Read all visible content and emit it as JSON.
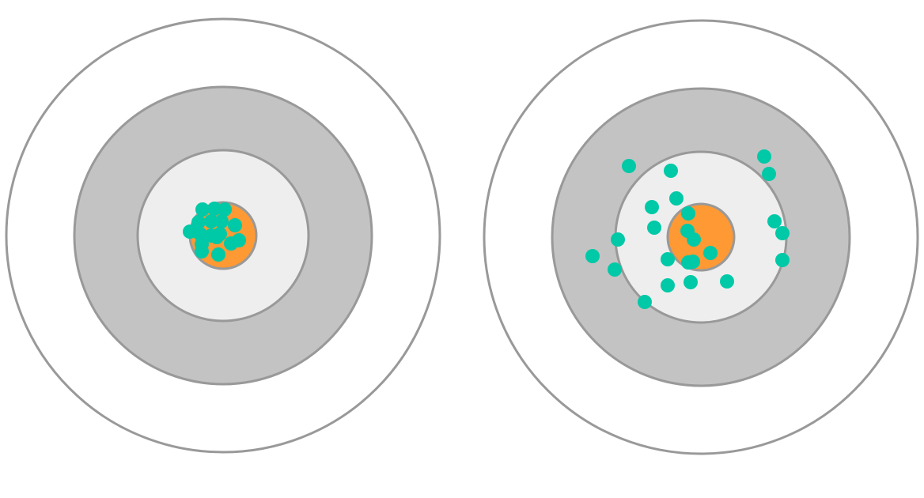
{
  "colors": {
    "background": "#ffffff",
    "ring_stroke": "#999999",
    "outer_ring_fill": "#ffffff",
    "middle_ring_fill": "#c3c3c3",
    "inner_ring_fill": "#eeeeee",
    "bullseye_fill": "#ff9933",
    "hit_fill": "#00c9a7"
  },
  "targets": [
    {
      "id": "left",
      "description_hidden": "",
      "hits": [
        [
          -26,
          -33
        ],
        [
          -11,
          -34
        ],
        [
          2,
          -33
        ],
        [
          -31,
          -17
        ],
        [
          -15,
          -18
        ],
        [
          -2,
          -18
        ],
        [
          15,
          -13
        ],
        [
          -42,
          -5
        ],
        [
          -29,
          -2
        ],
        [
          -15,
          0
        ],
        [
          -8,
          2
        ],
        [
          -4,
          -2
        ],
        [
          -27,
          11
        ],
        [
          10,
          10
        ],
        [
          20,
          6
        ],
        [
          -27,
          20
        ],
        [
          -6,
          24
        ]
      ]
    },
    {
      "id": "right",
      "description_hidden": "",
      "hits": [
        [
          -91,
          -90
        ],
        [
          -38,
          -84
        ],
        [
          80,
          -102
        ],
        [
          86,
          -80
        ],
        [
          -31,
          -49
        ],
        [
          -62,
          -38
        ],
        [
          -17,
          -8
        ],
        [
          -59,
          -12
        ],
        [
          -105,
          3
        ],
        [
          -137,
          24
        ],
        [
          -109,
          41
        ],
        [
          -16,
          -30
        ],
        [
          -9,
          3
        ],
        [
          12,
          20
        ],
        [
          -42,
          28
        ],
        [
          -16,
          32
        ],
        [
          -10,
          31
        ],
        [
          93,
          -20
        ],
        [
          103,
          -5
        ],
        [
          103,
          29
        ],
        [
          -42,
          61
        ],
        [
          -13,
          57
        ],
        [
          33,
          56
        ],
        [
          -71,
          82
        ]
      ]
    }
  ]
}
